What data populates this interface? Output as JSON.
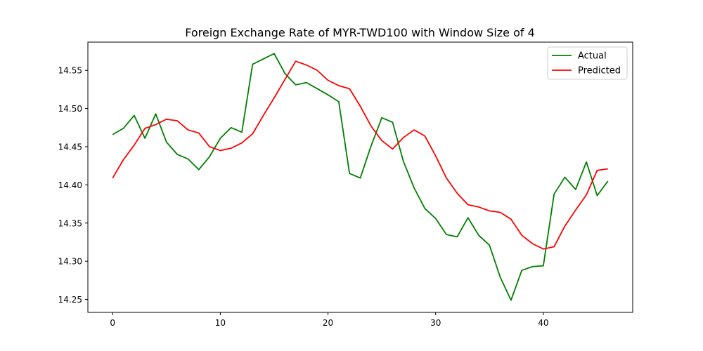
{
  "chart_data": {
    "type": "line",
    "title": "Foreign Exchange Rate of MYR-TWD100 with Window Size of 4",
    "xlabel": "",
    "ylabel": "",
    "xlim": [
      -2.3,
      48.3
    ],
    "ylim": [
      14.233,
      14.587
    ],
    "x_ticks": [
      0,
      10,
      20,
      30,
      40
    ],
    "y_ticks": [
      14.25,
      14.3,
      14.35,
      14.4,
      14.45,
      14.5,
      14.55
    ],
    "x_tick_labels": [
      "0",
      "10",
      "20",
      "30",
      "40"
    ],
    "y_tick_labels": [
      "14.25",
      "14.30",
      "14.35",
      "14.40",
      "14.45",
      "14.50",
      "14.55"
    ],
    "grid": false,
    "legend_position": "top-right",
    "series": [
      {
        "name": "Actual",
        "color": "#008000",
        "values": [
          14.466,
          14.474,
          14.491,
          14.461,
          14.493,
          14.456,
          14.44,
          14.434,
          14.42,
          14.437,
          14.461,
          14.475,
          14.469,
          14.558,
          14.565,
          14.572,
          14.546,
          14.531,
          14.534,
          14.526,
          14.518,
          14.509,
          14.415,
          14.409,
          14.451,
          14.488,
          14.482,
          14.431,
          14.396,
          14.369,
          14.356,
          14.335,
          14.332,
          14.357,
          14.334,
          14.321,
          14.279,
          14.249,
          14.288,
          14.293,
          14.294,
          14.388,
          14.41,
          14.394,
          14.43,
          14.386,
          14.405
        ]
      },
      {
        "name": "Predicted",
        "color": "#ff0000",
        "values": [
          14.409,
          14.433,
          14.452,
          14.474,
          14.479,
          14.486,
          14.484,
          14.472,
          14.468,
          14.45,
          14.445,
          14.448,
          14.455,
          14.467,
          14.491,
          14.514,
          14.538,
          14.562,
          14.557,
          14.55,
          14.537,
          14.53,
          14.526,
          14.503,
          14.477,
          14.458,
          14.447,
          14.462,
          14.472,
          14.464,
          14.438,
          14.409,
          14.389,
          14.374,
          14.371,
          14.366,
          14.364,
          14.355,
          14.334,
          14.323,
          14.316,
          14.319,
          14.346,
          14.367,
          14.387,
          14.419,
          14.421
        ]
      }
    ]
  }
}
